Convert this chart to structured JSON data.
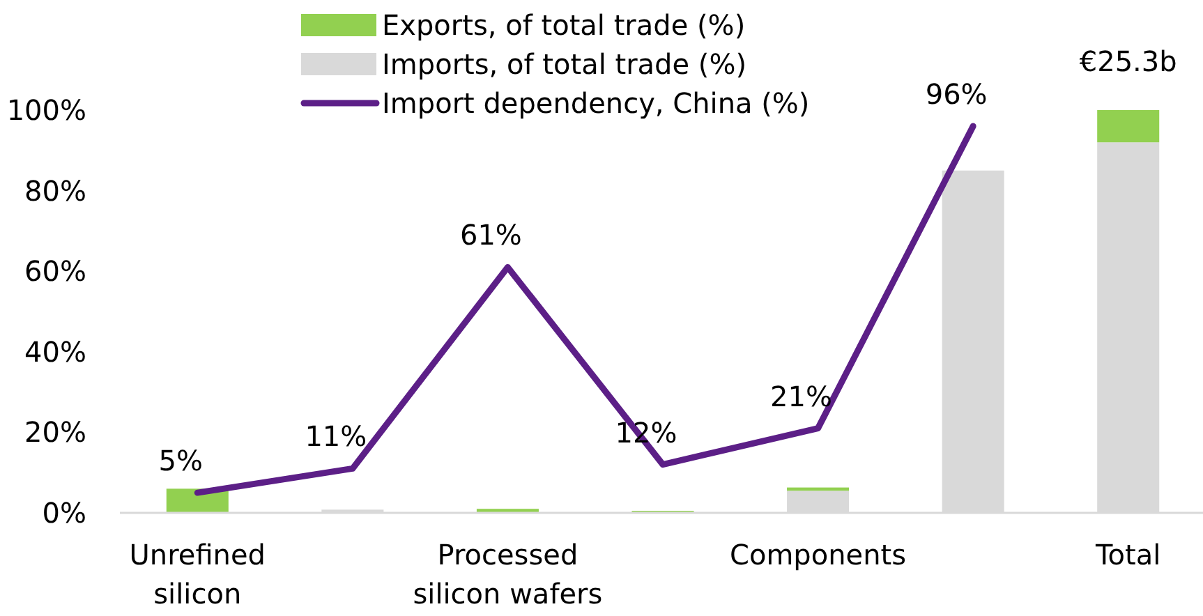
{
  "chart_data": {
    "type": "bar",
    "stacked": true,
    "categories": [
      "Unrefined silicon",
      null,
      "Processed silicon wafers",
      null,
      "Components",
      null,
      "Total"
    ],
    "series": [
      {
        "name": "Exports, of total trade (%)",
        "color": "#92d050",
        "values": [
          6,
          0,
          1,
          0.5,
          0.8,
          0,
          8
        ]
      },
      {
        "name": "Imports, of total trade (%)",
        "color": "#d9d9d9",
        "values": [
          0,
          0.8,
          null,
          null,
          5.5,
          85,
          92
        ]
      },
      {
        "name": "Import dependency, China (%)",
        "type": "line",
        "color": "#5c1f87",
        "values": [
          5,
          11,
          61,
          12,
          21,
          96,
          null
        ],
        "value_labels": [
          "5%",
          "11%",
          "61%",
          "12%",
          "21%",
          "96%",
          null
        ]
      }
    ],
    "ylim": [
      0,
      100
    ],
    "yticks": [
      {
        "value": 0,
        "label": "0%"
      },
      {
        "value": 20,
        "label": "20%"
      },
      {
        "value": 40,
        "label": "40%"
      },
      {
        "value": 60,
        "label": "60%"
      },
      {
        "value": 80,
        "label": "80%"
      },
      {
        "value": 100,
        "label": "100%"
      }
    ],
    "annotations": [
      {
        "text": "€25.3b",
        "x": "Total",
        "y": 100
      }
    ],
    "legend": "top",
    "grid": false
  }
}
